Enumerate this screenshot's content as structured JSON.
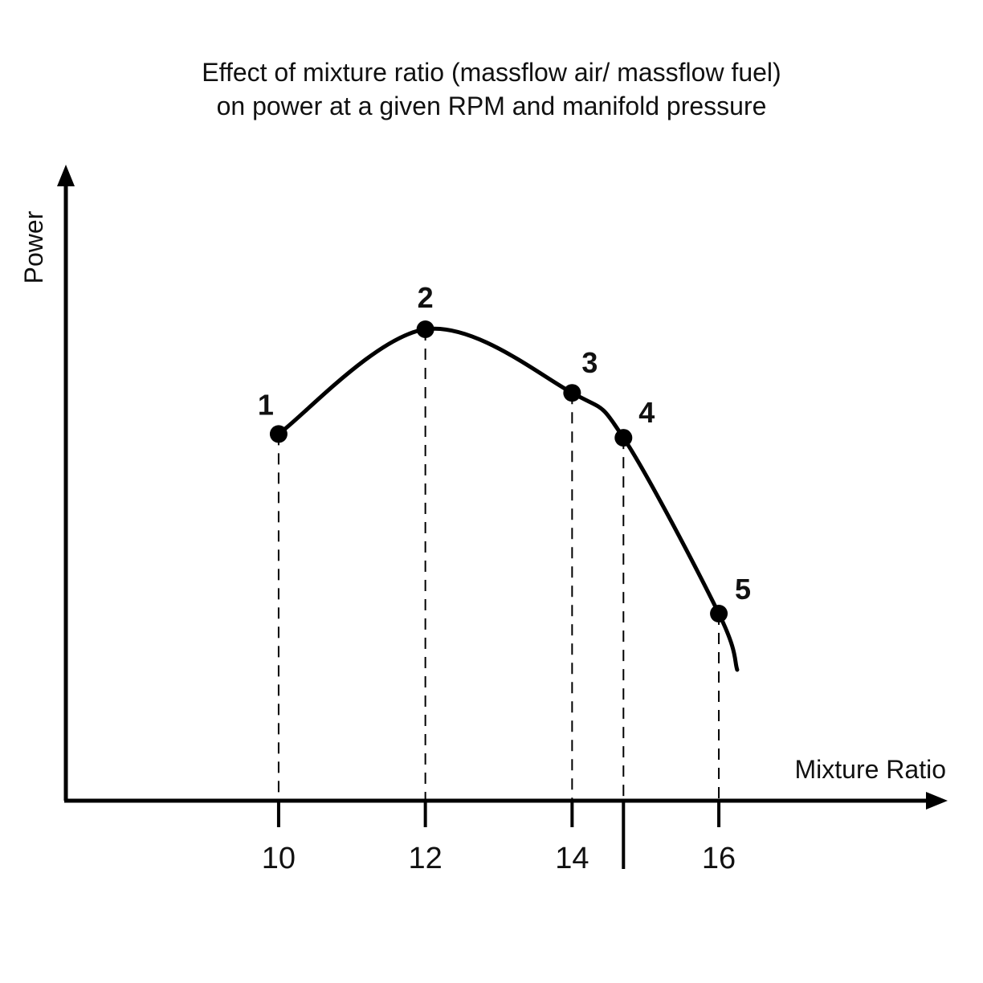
{
  "chart_data": {
    "type": "line",
    "title_line1": "Effect of mixture ratio (massflow air/ massflow fuel)",
    "title_line2": "on power at a given RPM and manifold pressure",
    "xlabel": "Mixture Ratio",
    "ylabel": "Power",
    "x_ticks": [
      "10",
      "12",
      "14",
      "16"
    ],
    "x_tick_values": [
      10,
      12,
      14,
      16
    ],
    "xlim": [
      7.1,
      18.9
    ],
    "ylim": [
      0,
      8.5
    ],
    "grid": false,
    "series": [
      {
        "points": [
          {
            "label": "1",
            "x": 10.0,
            "y": 4.9
          },
          {
            "label": "2",
            "x": 12.0,
            "y": 6.3
          },
          {
            "label": "3",
            "x": 14.0,
            "y": 5.45
          },
          {
            "label": "4",
            "x": 14.7,
            "y": 4.85
          },
          {
            "label": "5",
            "x": 16.0,
            "y": 2.5
          }
        ],
        "curve_end": {
          "x": 16.25,
          "y": 1.75
        }
      }
    ],
    "marker_line_x": 14.7,
    "colors": {
      "line": "#000000",
      "background": "#ffffff"
    }
  }
}
